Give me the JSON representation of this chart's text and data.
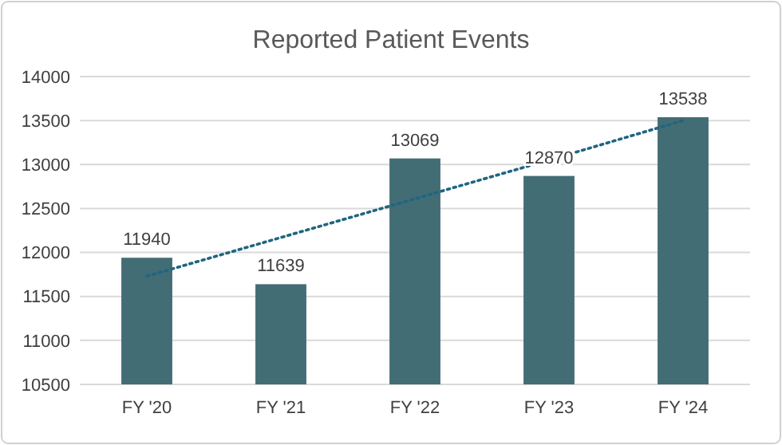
{
  "chart_data": {
    "type": "bar",
    "title": "Reported Patient Events",
    "categories": [
      "FY '20",
      "FY '21",
      "FY '22",
      "FY '23",
      "FY '24"
    ],
    "series": [
      {
        "color": "#436d75",
        "values": [
          11940,
          11639,
          13069,
          12870,
          13538
        ],
        "value_labels": [
          "11940",
          "11639",
          "13069",
          "12870",
          "13538"
        ]
      },
      {
        "type": "line",
        "color": "#1f6680",
        "line_style": "dotted",
        "values": [
          11730,
          12170,
          12610,
          13050,
          13500
        ]
      }
    ],
    "ylim": [
      10500,
      14000
    ],
    "yticks": [
      10500,
      11000,
      11500,
      12000,
      12500,
      13000,
      13500,
      14000
    ],
    "grid": "y"
  }
}
